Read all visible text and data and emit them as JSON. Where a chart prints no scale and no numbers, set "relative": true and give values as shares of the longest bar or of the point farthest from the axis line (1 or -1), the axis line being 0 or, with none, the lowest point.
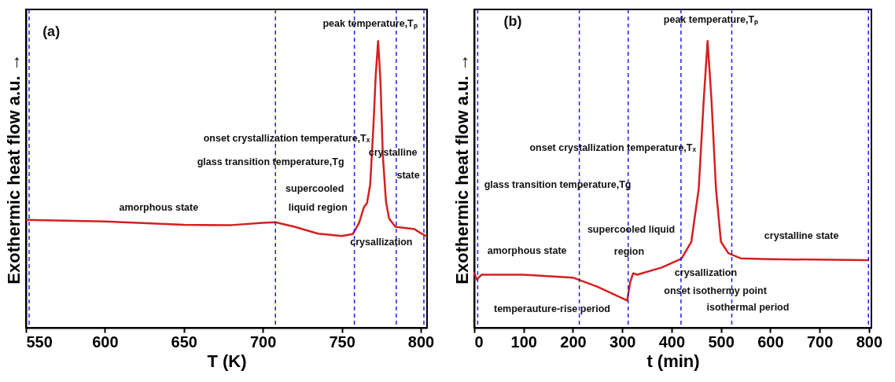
{
  "chart_data": [
    {
      "type": "line",
      "relative": true,
      "xlabel": "T (K)",
      "ylabel": "Exothermic heat flow a.u. →",
      "xlim": [
        550,
        804
      ],
      "xticks": [
        550,
        600,
        650,
        700,
        750,
        800
      ],
      "x": [
        550,
        600,
        650,
        680,
        700,
        708,
        720,
        735,
        750,
        757,
        761,
        764,
        766,
        768,
        770,
        771.5,
        773,
        774.5,
        776,
        778,
        780,
        784,
        790,
        796,
        800,
        804
      ],
      "series": [
        {
          "color": "#d42020",
          "values": [
            0.376,
            0.371,
            0.359,
            0.358,
            0.366,
            0.368,
            0.352,
            0.328,
            0.32,
            0.327,
            0.366,
            0.42,
            0.435,
            0.5,
            0.7,
            0.88,
            1,
            0.86,
            0.6,
            0.44,
            0.38,
            0.352,
            0.348,
            0.344,
            0.33,
            0.318
          ]
        }
      ],
      "ref_lines": [
        {
          "axis": "x",
          "value": 552,
          "color": "#2020f0",
          "line_style": "dashed"
        },
        {
          "axis": "x",
          "value": 708,
          "color": "#2020f0",
          "line_style": "dashed"
        },
        {
          "axis": "x",
          "value": 758,
          "color": "#2020f0",
          "line_style": "dashed"
        },
        {
          "axis": "x",
          "value": 784.5,
          "color": "#2020f0",
          "line_style": "dashed"
        },
        {
          "axis": "x",
          "value": 802,
          "color": "#2020f0",
          "line_style": "dashed"
        }
      ],
      "annotations": [
        "(a)",
        "peak temperature,Tₚ",
        "onset crystallization temperature,Tₓ",
        "glass transition temperature,Tg",
        "supercooled",
        "liquid region",
        "amorphous state",
        "crystalline",
        "state",
        "crysallization"
      ]
    },
    {
      "type": "line",
      "relative": true,
      "xlabel": "t (min)",
      "ylabel": "Exothermic heat flow a.u. →",
      "xlim": [
        0,
        805
      ],
      "xticks": [
        0,
        100,
        200,
        300,
        400,
        500,
        600,
        700,
        800
      ],
      "x": [
        0,
        5,
        15,
        100,
        200,
        250,
        310,
        316,
        322,
        330,
        380,
        420,
        440,
        455,
        465,
        473,
        481,
        490,
        500,
        515,
        540,
        600,
        800
      ],
      "series": [
        {
          "color": "#d42020",
          "values": [
            0.193,
            0.168,
            0.185,
            0.185,
            0.175,
            0.143,
            0.095,
            0.158,
            0.19,
            0.185,
            0.21,
            0.241,
            0.3,
            0.484,
            0.79,
            1,
            0.79,
            0.484,
            0.3,
            0.26,
            0.242,
            0.239,
            0.236
          ]
        }
      ],
      "ref_lines": [
        {
          "axis": "x",
          "value": 7,
          "color": "#2020f0",
          "line_style": "dashed"
        },
        {
          "axis": "x",
          "value": 213,
          "color": "#2020f0",
          "line_style": "dashed"
        },
        {
          "axis": "x",
          "value": 312,
          "color": "#2020f0",
          "line_style": "dashed"
        },
        {
          "axis": "x",
          "value": 419,
          "color": "#2020f0",
          "line_style": "dashed"
        },
        {
          "axis": "x",
          "value": 522,
          "color": "#2020f0",
          "line_style": "dashed"
        },
        {
          "axis": "x",
          "value": 799,
          "color": "#2020f0",
          "line_style": "dashed"
        }
      ],
      "annotations": [
        "(b)",
        "peak temperature,Tₚ",
        "onset crystallization temperature,Tₓ",
        "glass transition temperature,Tg",
        "supercooled liquid",
        "amorphous state",
        "region",
        "crystalline state",
        "crysallization",
        "onset isothermy point",
        "temperauture-rise period",
        "isothermal period"
      ]
    }
  ]
}
